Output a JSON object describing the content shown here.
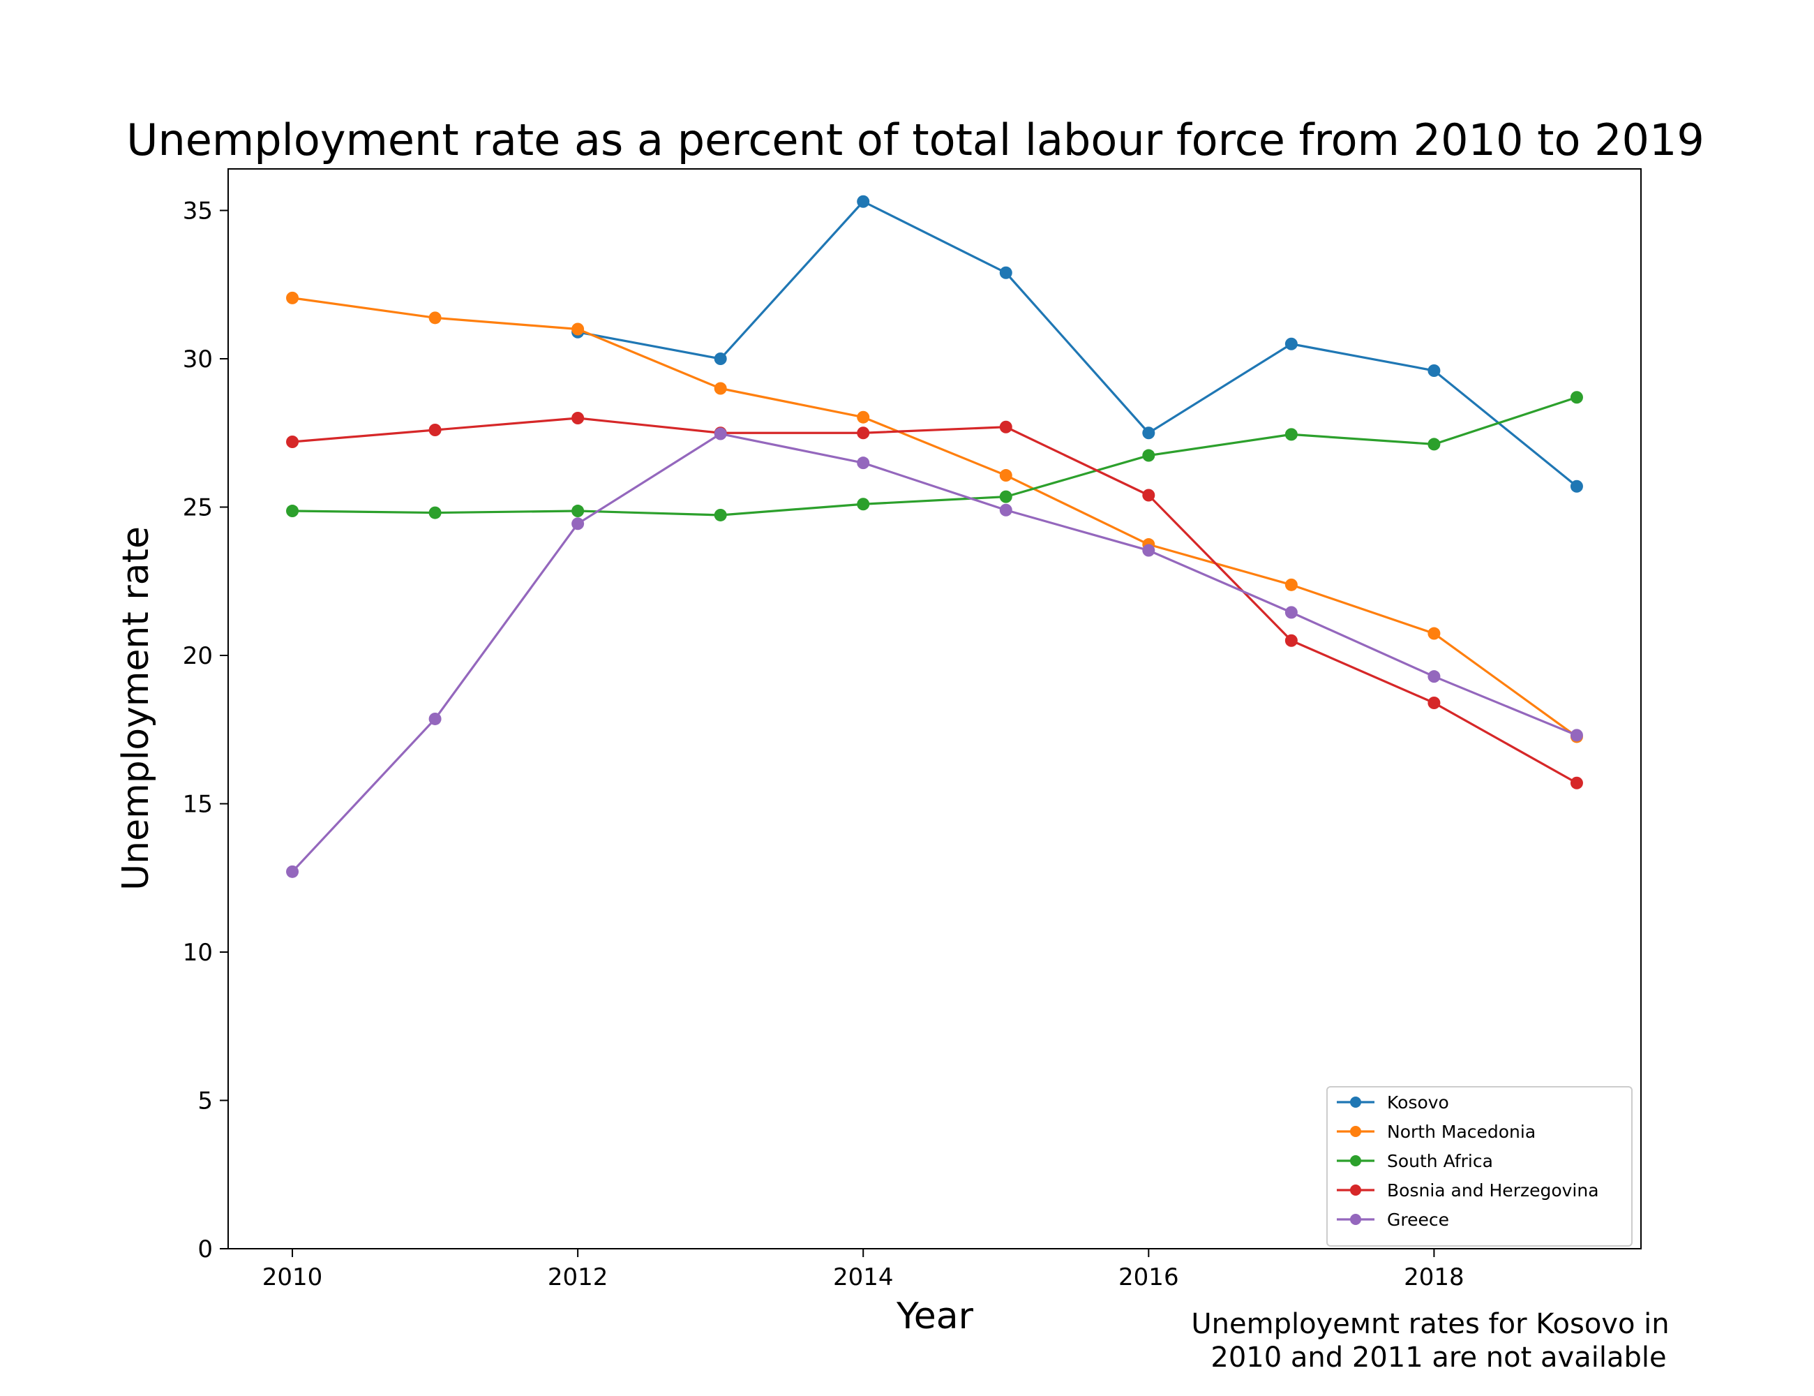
{
  "chart_data": {
    "type": "line",
    "title": "Unemployment rate as a percent of total labour force from 2010 to 2019",
    "xlabel": "Year",
    "ylabel": "Unemployment rate",
    "xlim": [
      2009.55,
      2019.45
    ],
    "ylim": [
      0,
      36.4
    ],
    "x_ticks": [
      2010,
      2012,
      2014,
      2016,
      2018
    ],
    "y_ticks": [
      0,
      5,
      10,
      15,
      20,
      25,
      30,
      35
    ],
    "grid": false,
    "legend_position": "bottom-right",
    "x": [
      2010,
      2011,
      2012,
      2013,
      2014,
      2015,
      2016,
      2017,
      2018,
      2019
    ],
    "series": [
      {
        "name": "Kosovo",
        "color": "#1f77b4",
        "values": [
          null,
          null,
          30.9,
          30.0,
          35.3,
          32.9,
          27.5,
          30.5,
          29.6,
          25.7
        ]
      },
      {
        "name": "North Macedonia",
        "color": "#ff7f0e",
        "values": [
          32.05,
          31.38,
          31.0,
          29.0,
          28.03,
          26.07,
          23.74,
          22.38,
          20.74,
          17.26
        ]
      },
      {
        "name": "South Africa",
        "color": "#2ca02c",
        "values": [
          24.87,
          24.81,
          24.87,
          24.73,
          25.1,
          25.35,
          26.74,
          27.45,
          27.12,
          28.7
        ]
      },
      {
        "name": "Bosnia and Herzegovina",
        "color": "#d62728",
        "values": [
          27.2,
          27.6,
          28.0,
          27.5,
          27.5,
          27.7,
          25.4,
          20.5,
          18.4,
          15.7
        ]
      },
      {
        "name": "Greece",
        "color": "#9467bd",
        "values": [
          12.71,
          17.86,
          24.44,
          27.47,
          26.49,
          24.9,
          23.54,
          21.45,
          19.29,
          17.31
        ]
      }
    ],
    "annotation": [
      "Unemployeмnt rates for Kosovo in",
      "2010 and 2011 are not available"
    ]
  }
}
